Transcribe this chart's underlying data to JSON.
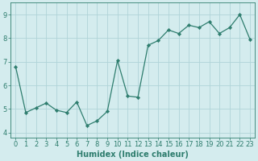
{
  "x": [
    0,
    1,
    2,
    3,
    4,
    5,
    6,
    7,
    8,
    9,
    10,
    11,
    12,
    13,
    14,
    15,
    16,
    17,
    18,
    19,
    20,
    21,
    22,
    23
  ],
  "y": [
    6.8,
    4.85,
    5.05,
    5.25,
    4.95,
    4.85,
    5.3,
    4.3,
    4.5,
    4.9,
    7.05,
    5.55,
    5.5,
    7.7,
    7.9,
    8.35,
    8.2,
    8.55,
    8.45,
    8.7,
    8.2,
    8.45,
    9.0,
    7.95
  ],
  "line_color": "#2e7d6e",
  "marker": "D",
  "marker_size": 2.2,
  "bg_color": "#d4ecee",
  "grid_color": "#b0d4d8",
  "xlabel": "Humidex (Indice chaleur)",
  "ylim": [
    3.8,
    9.5
  ],
  "xlim": [
    -0.5,
    23.5
  ],
  "yticks": [
    4,
    5,
    6,
    7,
    8,
    9
  ],
  "xticks": [
    0,
    1,
    2,
    3,
    4,
    5,
    6,
    7,
    8,
    9,
    10,
    11,
    12,
    13,
    14,
    15,
    16,
    17,
    18,
    19,
    20,
    21,
    22,
    23
  ],
  "tick_color": "#2e7d6e",
  "label_color": "#2e7d6e",
  "font_size": 6.0,
  "xlabel_fontsize": 7.0,
  "linewidth": 0.9
}
